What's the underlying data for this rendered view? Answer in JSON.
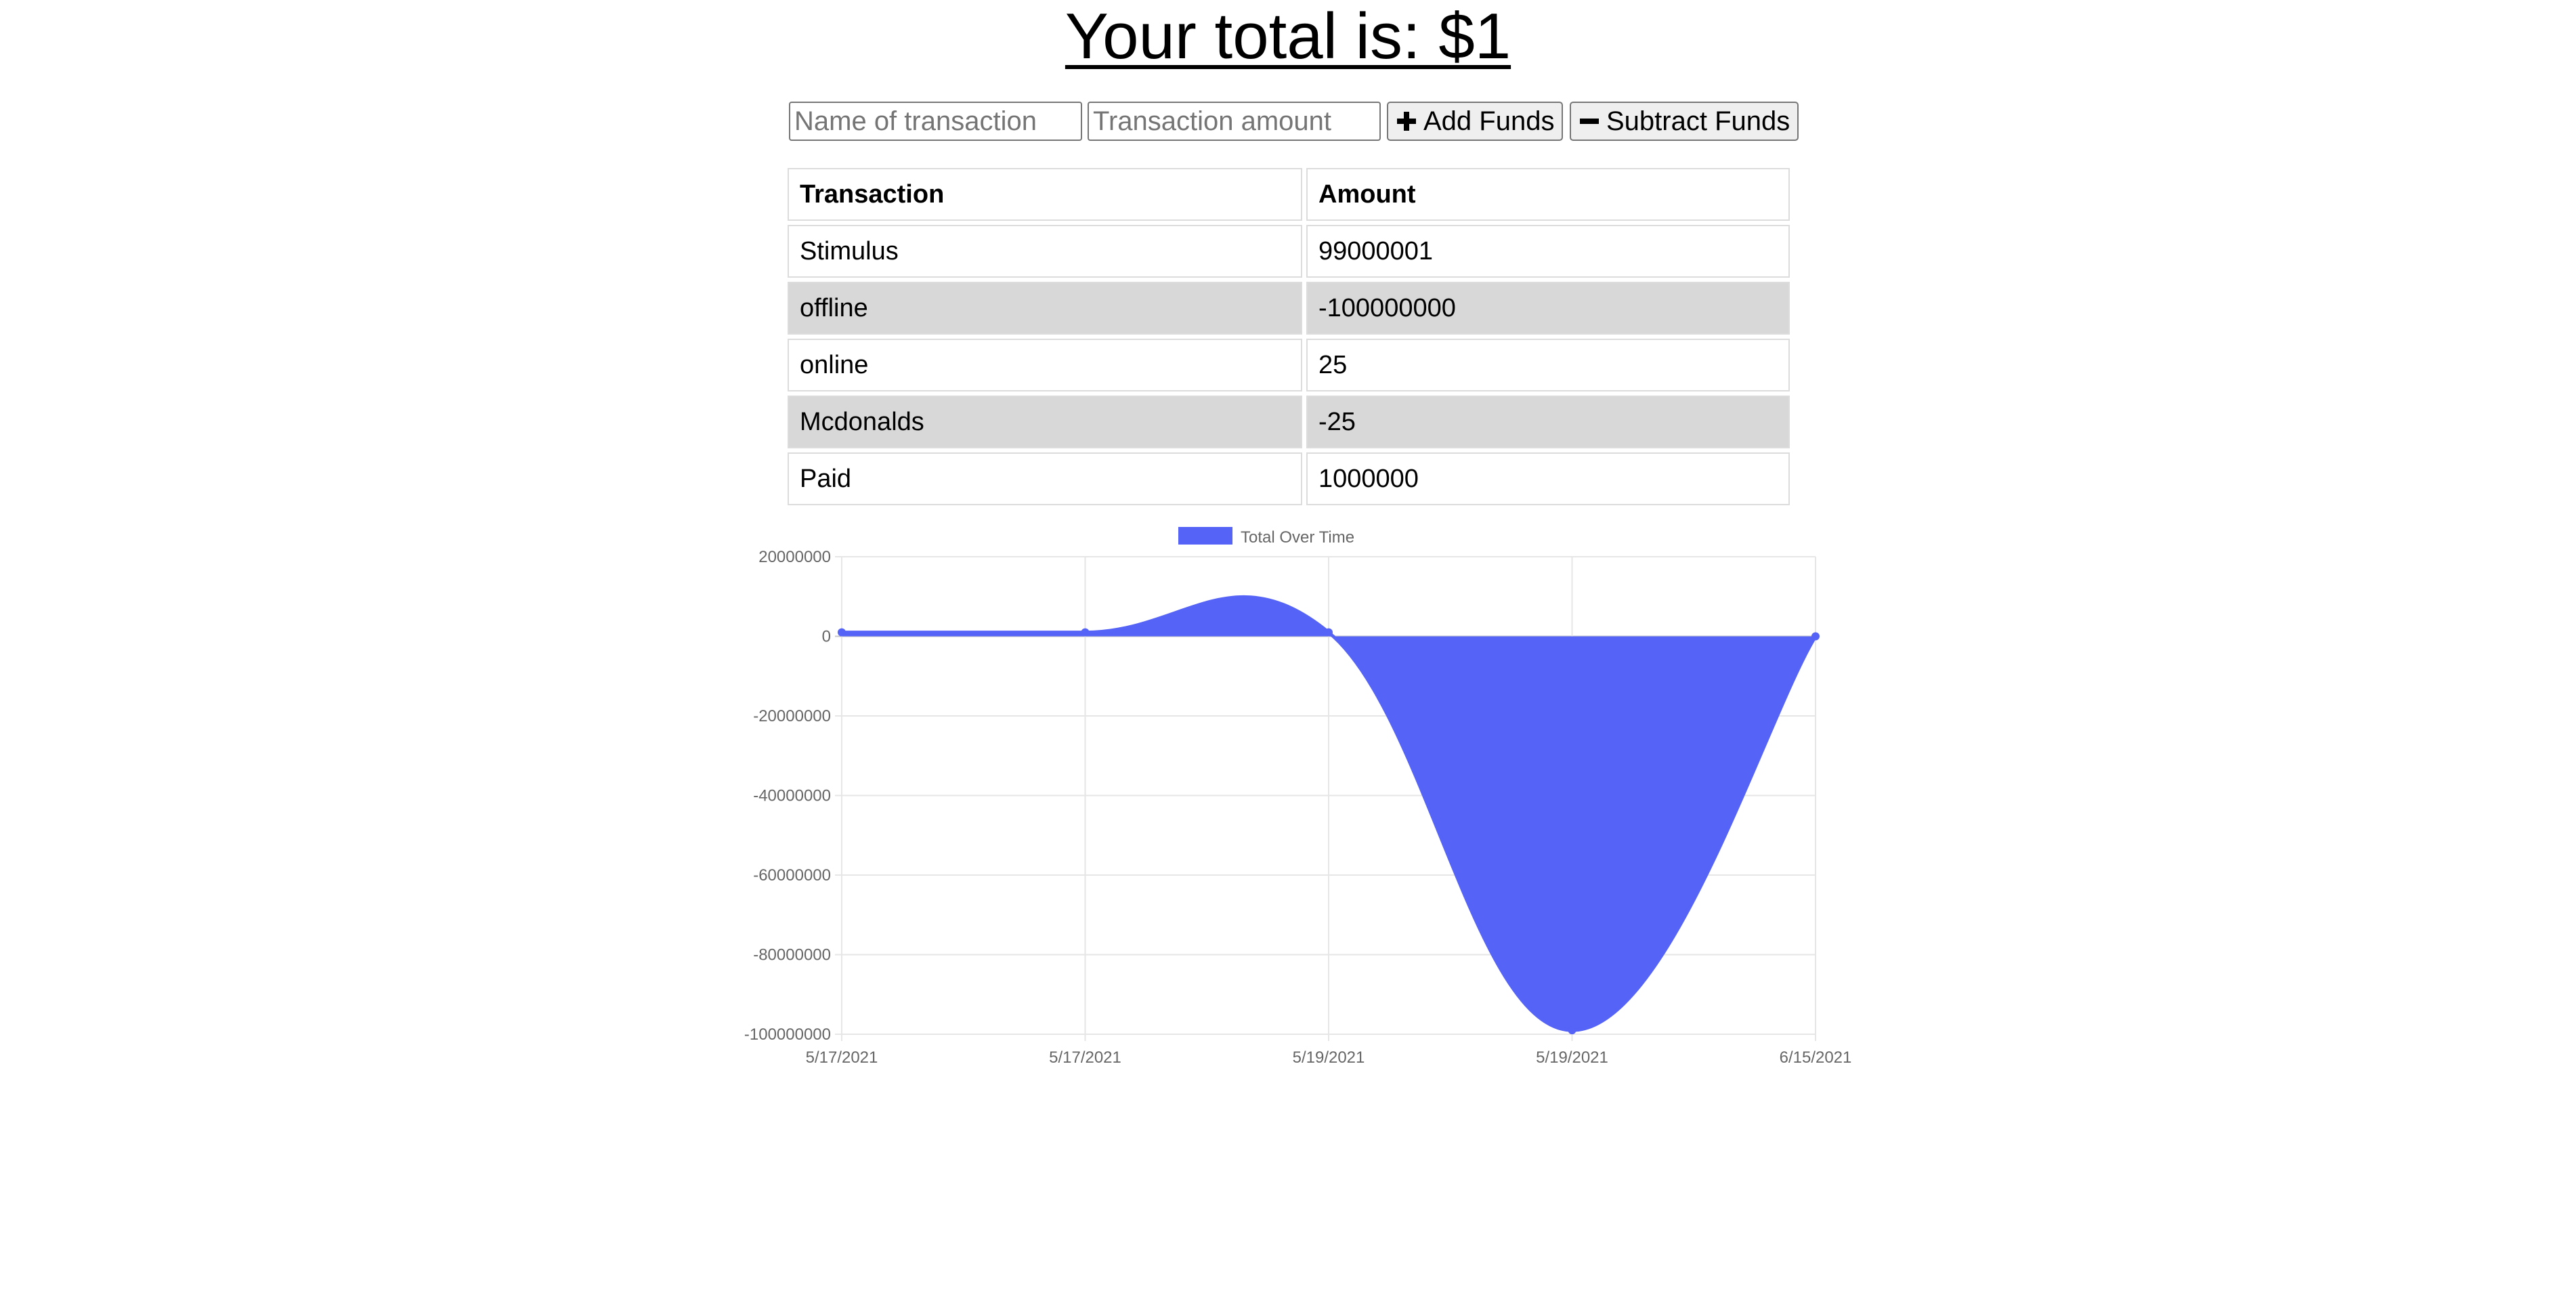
{
  "header": {
    "title": "Your total is: $1"
  },
  "form": {
    "name_placeholder": "Name of transaction",
    "amount_placeholder": "Transaction amount",
    "add_label": "Add Funds",
    "subtract_label": "Subtract Funds",
    "add_icon": "plus-icon",
    "subtract_icon": "minus-icon"
  },
  "table": {
    "headers": [
      "Transaction",
      "Amount"
    ],
    "rows": [
      {
        "name": "Stimulus",
        "amount": "99000001"
      },
      {
        "name": "offline",
        "amount": "-100000000"
      },
      {
        "name": "online",
        "amount": "25"
      },
      {
        "name": "Mcdonalds",
        "amount": "-25"
      },
      {
        "name": "Paid",
        "amount": "1000000"
      }
    ],
    "shaded_row_color": "#d8d8d8"
  },
  "chart_data": {
    "type": "area",
    "x": [
      "5/17/2021",
      "5/17/2021",
      "5/19/2021",
      "5/19/2021",
      "6/15/2021"
    ],
    "series": [
      {
        "name": "Total Over Time",
        "values": [
          1000000,
          1000000,
          1000000,
          -99000000,
          1
        ]
      }
    ],
    "ylim": [
      -100000000,
      20000000
    ],
    "yticks": [
      20000000,
      0,
      -20000000,
      -40000000,
      -60000000,
      -80000000,
      -100000000
    ],
    "fill_color": "#5563f6",
    "grid": true,
    "legend": "top"
  }
}
